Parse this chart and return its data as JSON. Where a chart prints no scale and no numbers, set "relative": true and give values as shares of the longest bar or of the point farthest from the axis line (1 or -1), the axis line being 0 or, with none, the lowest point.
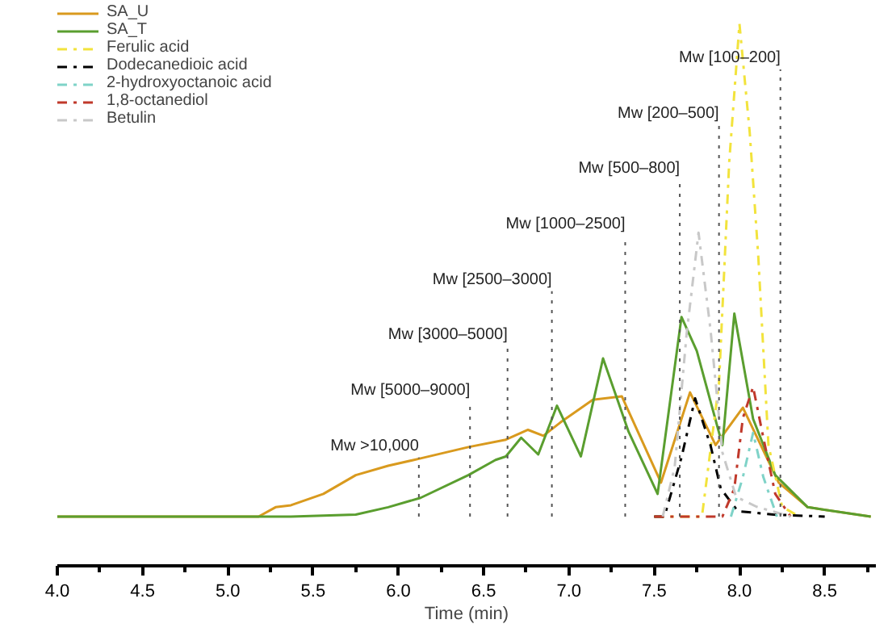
{
  "chart_data": {
    "type": "line",
    "relative": true,
    "xlabel": "Time (min)",
    "xlim": [
      4.0,
      8.8
    ],
    "xticks": [
      {
        "value": 4.0,
        "label": "4.0"
      },
      {
        "value": 4.5,
        "label": "4.5"
      },
      {
        "value": 5.0,
        "label": "5.0"
      },
      {
        "value": 5.5,
        "label": "5.5"
      },
      {
        "value": 6.0,
        "label": "6.0"
      },
      {
        "value": 6.5,
        "label": "6.5"
      },
      {
        "value": 7.0,
        "label": "7.0"
      },
      {
        "value": 7.5,
        "label": "7.5"
      },
      {
        "value": 8.0,
        "label": "8.0"
      },
      {
        "value": 8.5,
        "label": "8.5"
      }
    ],
    "grid": false,
    "legend": "top left",
    "marker": "none",
    "series": [
      {
        "name": "SA_U",
        "color": "#d99a1e",
        "line_style": "solid",
        "x": [
          4.0,
          5.18,
          5.28,
          5.37,
          5.56,
          5.75,
          5.94,
          6.13,
          6.41,
          6.63,
          6.76,
          6.85,
          6.95,
          7.14,
          7.31,
          7.54,
          7.71,
          7.86,
          8.02,
          8.14,
          8.23,
          8.4,
          8.77
        ],
        "values": [
          0,
          0,
          0.019,
          0.023,
          0.046,
          0.084,
          0.103,
          0.118,
          0.141,
          0.156,
          0.176,
          0.164,
          0.191,
          0.237,
          0.244,
          0.069,
          0.252,
          0.145,
          0.221,
          0.134,
          0.069,
          0.019,
          0
        ]
      },
      {
        "name": "SA_T",
        "color": "#5a9e2f",
        "line_style": "solid",
        "x": [
          4.0,
          5.37,
          5.75,
          5.94,
          6.13,
          6.41,
          6.57,
          6.63,
          6.72,
          6.82,
          6.93,
          7.07,
          7.2,
          7.35,
          7.52,
          7.66,
          7.75,
          7.9,
          7.97,
          8.08,
          8.21,
          8.4,
          8.77
        ],
        "values": [
          0,
          0,
          0.004,
          0.019,
          0.038,
          0.084,
          0.115,
          0.122,
          0.16,
          0.126,
          0.225,
          0.122,
          0.321,
          0.172,
          0.046,
          0.405,
          0.336,
          0.145,
          0.412,
          0.198,
          0.084,
          0.019,
          0
        ]
      },
      {
        "name": "Ferulic acid",
        "color": "#f2e33c",
        "line_style": "dashed",
        "x": [
          7.5,
          7.78,
          7.88,
          7.94,
          8.0,
          8.06,
          8.11,
          8.17,
          8.25,
          8.35
        ],
        "values": [
          0,
          0,
          0.27,
          0.72,
          1.0,
          0.78,
          0.53,
          0.145,
          0.02,
          0
        ]
      },
      {
        "name": "Dodecanedioic acid",
        "color": "#000000",
        "line_style": "dashed",
        "x": [
          7.5,
          7.56,
          7.66,
          7.74,
          7.83,
          7.89,
          7.99,
          8.2,
          8.5
        ],
        "values": [
          0,
          0,
          0.12,
          0.24,
          0.145,
          0.057,
          0.011,
          0.004,
          0
        ]
      },
      {
        "name": "2-hydroxyoctanoic acid",
        "color": "#7fd3c8",
        "line_style": "dashed",
        "x": [
          7.95,
          8.02,
          8.08,
          8.14,
          8.22
        ],
        "values": [
          0,
          0.08,
          0.17,
          0.08,
          0
        ]
      },
      {
        "name": "1,8-octanediol",
        "color": "#c0392b",
        "line_style": "dashed",
        "x": [
          7.5,
          7.9,
          7.97,
          8.02,
          8.08,
          8.14,
          8.21,
          8.3
        ],
        "values": [
          0,
          0,
          0.057,
          0.2,
          0.263,
          0.16,
          0.046,
          0
        ]
      },
      {
        "name": "Betulin",
        "color": "#c8c8c8",
        "line_style": "dashed",
        "x": [
          7.55,
          7.62,
          7.69,
          7.76,
          7.83,
          7.9,
          7.98,
          8.1,
          8.3
        ],
        "values": [
          0,
          0.1,
          0.37,
          0.576,
          0.38,
          0.13,
          0.04,
          0.02,
          0
        ]
      }
    ],
    "ref_lines": [
      {
        "axis": "x",
        "value": 6.12,
        "label": "Mw >10,000",
        "line_style": "dotted",
        "color": "#555555"
      },
      {
        "axis": "x",
        "value": 6.42,
        "label": "Mw [5000–9000]",
        "line_style": "dotted",
        "color": "#555555"
      },
      {
        "axis": "x",
        "value": 6.64,
        "label": "Mw [3000–5000]",
        "line_style": "dotted",
        "color": "#555555"
      },
      {
        "axis": "x",
        "value": 6.9,
        "label": "Mw [2500–3000]",
        "line_style": "dotted",
        "color": "#555555"
      },
      {
        "axis": "x",
        "value": 7.33,
        "label": "Mw [1000–2500]",
        "line_style": "dotted",
        "color": "#555555"
      },
      {
        "axis": "x",
        "value": 7.65,
        "label": "Mw [500–800]",
        "line_style": "dotted",
        "color": "#555555"
      },
      {
        "axis": "x",
        "value": 7.88,
        "label": "Mw [200–500]",
        "line_style": "dotted",
        "color": "#555555"
      },
      {
        "axis": "x",
        "value": 8.24,
        "label": "Mw [100–200]",
        "line_style": "dotted",
        "color": "#555555"
      }
    ]
  }
}
